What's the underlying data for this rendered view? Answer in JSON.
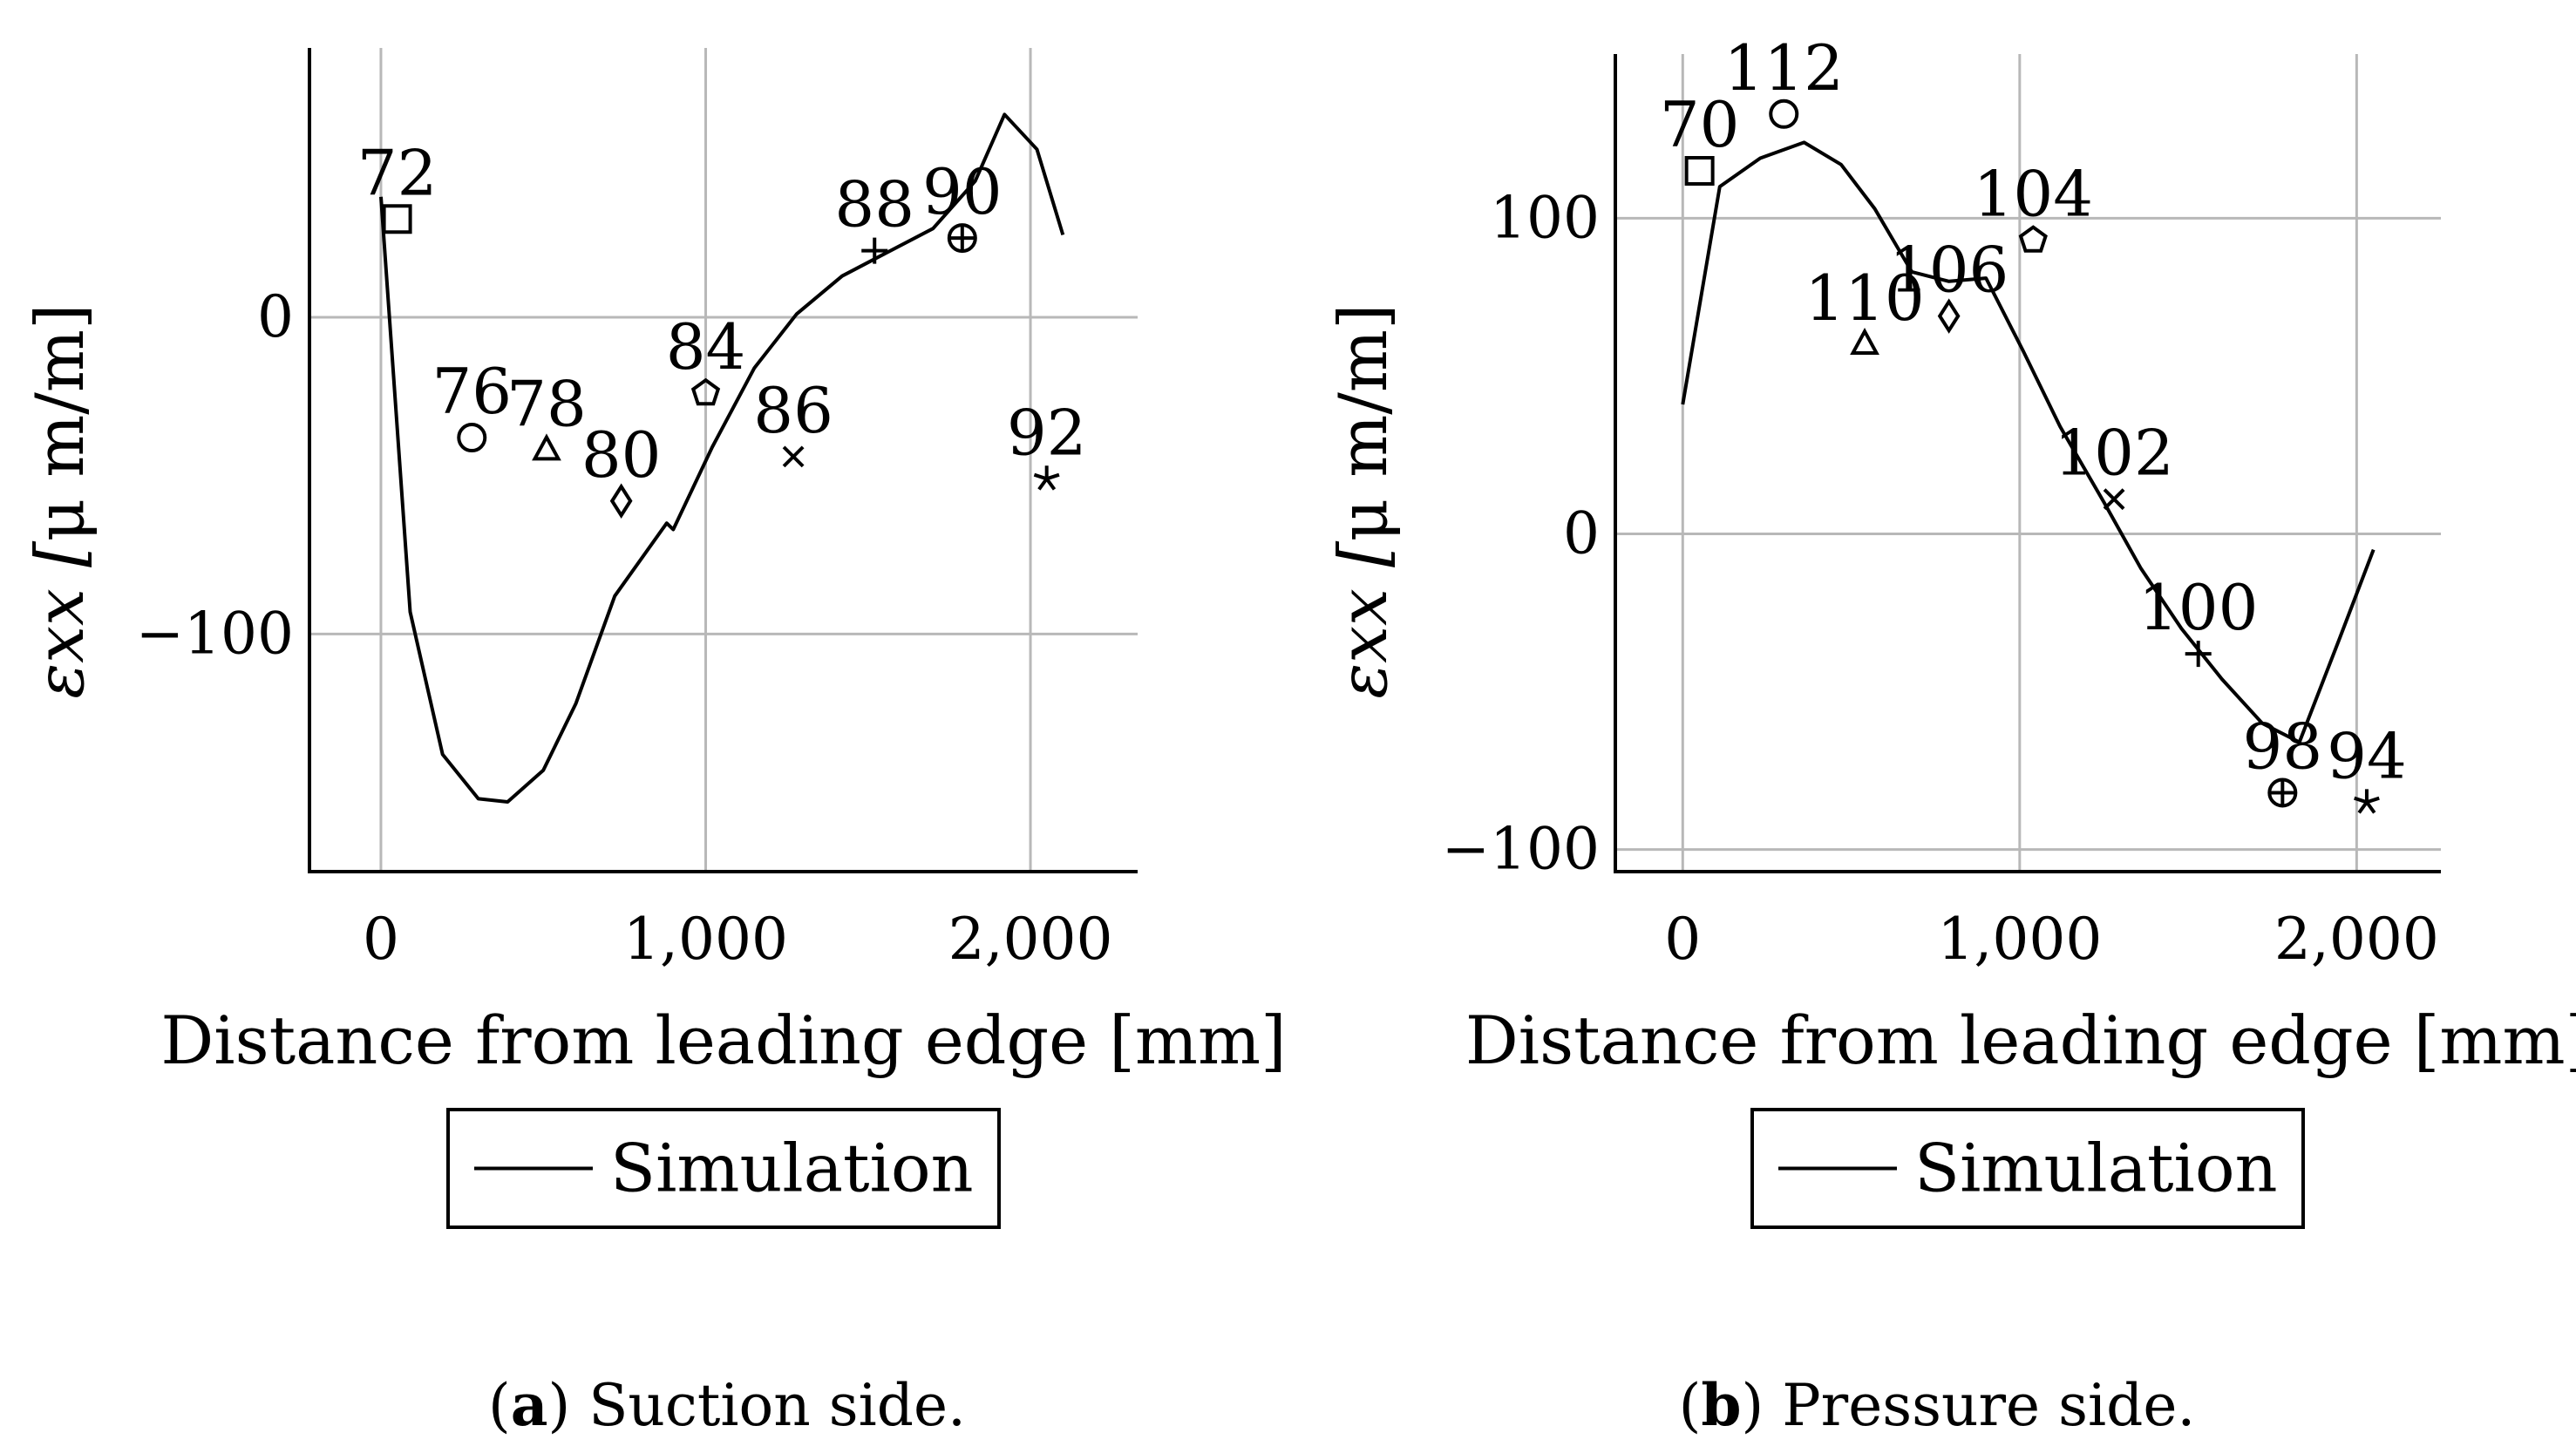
{
  "chart_data": [
    {
      "type": "line",
      "caption_letter": "a",
      "caption_text": ") Suction side.",
      "xlabel": "Distance from leading edge [mm]",
      "ylabel_prefix": "εxx [",
      "ylabel_unit": "μ m/m]",
      "xlim": [
        -220,
        2330
      ],
      "ylim": [
        -175,
        85
      ],
      "xticks": [
        {
          "value": 0,
          "label": "0"
        },
        {
          "value": 1000,
          "label": "1,000"
        },
        {
          "value": 2000,
          "label": "2,000"
        }
      ],
      "yticks": [
        {
          "value": 0,
          "label": "0"
        },
        {
          "value": -100,
          "label": "−100"
        }
      ],
      "grid": true,
      "legend": {
        "entries": [
          "Simulation"
        ],
        "placement": "below"
      },
      "simulation": {
        "name": "Simulation",
        "x": [
          0,
          90,
          190,
          300,
          390,
          500,
          600,
          720,
          880,
          900,
          1020,
          1150,
          1280,
          1420,
          1550,
          1700,
          1830,
          1920,
          2020,
          2100
        ],
        "y": [
          38,
          -93,
          -138,
          -152,
          -153,
          -143,
          -122,
          -88,
          -65,
          -67,
          -41,
          -16,
          1,
          13,
          20,
          28,
          43,
          64,
          53,
          26
        ]
      },
      "sensors": [
        {
          "label": "72",
          "x": 50,
          "y": 31,
          "marker": "square"
        },
        {
          "label": "76",
          "x": 280,
          "y": -38,
          "marker": "circle"
        },
        {
          "label": "78",
          "x": 510,
          "y": -42,
          "marker": "triangle"
        },
        {
          "label": "80",
          "x": 740,
          "y": -58,
          "marker": "diamond"
        },
        {
          "label": "84",
          "x": 1000,
          "y": -24,
          "marker": "pentagon"
        },
        {
          "label": "86",
          "x": 1270,
          "y": -44,
          "marker": "x"
        },
        {
          "label": "88",
          "x": 1520,
          "y": 21,
          "marker": "plus"
        },
        {
          "label": "90",
          "x": 1790,
          "y": 25,
          "marker": "oplus"
        },
        {
          "label": "92",
          "x": 2050,
          "y": -51,
          "marker": "star"
        }
      ]
    },
    {
      "type": "line",
      "caption_letter": "b",
      "caption_text": ") Pressure side.",
      "xlabel": "Distance from leading edge [mm]",
      "ylabel_prefix": "εxx [",
      "ylabel_unit": "μ m/m]",
      "xlim": [
        -200,
        2250
      ],
      "ylim": [
        -107,
        152
      ],
      "xticks": [
        {
          "value": 0,
          "label": "0"
        },
        {
          "value": 1000,
          "label": "1,000"
        },
        {
          "value": 2000,
          "label": "2,000"
        }
      ],
      "yticks": [
        {
          "value": 100,
          "label": "100"
        },
        {
          "value": 0,
          "label": "0"
        },
        {
          "value": -100,
          "label": "−100"
        }
      ],
      "grid": true,
      "legend": {
        "entries": [
          "Simulation"
        ],
        "placement": "below"
      },
      "simulation": {
        "name": "Simulation",
        "x": [
          0,
          110,
          230,
          360,
          470,
          570,
          680,
          790,
          900,
          1010,
          1120,
          1250,
          1360,
          1480,
          1600,
          1720,
          1830,
          1950,
          2050
        ],
        "y": [
          41,
          110,
          119,
          124,
          117,
          103,
          83,
          80,
          81,
          58,
          34,
          10,
          -11,
          -30,
          -46,
          -60,
          -66,
          -33,
          -5
        ]
      },
      "sensors": [
        {
          "label": "70",
          "x": 50,
          "y": 115,
          "marker": "square"
        },
        {
          "label": "112",
          "x": 300,
          "y": 133,
          "marker": "circle"
        },
        {
          "label": "110",
          "x": 540,
          "y": 60,
          "marker": "triangle"
        },
        {
          "label": "106",
          "x": 790,
          "y": 69,
          "marker": "diamond"
        },
        {
          "label": "104",
          "x": 1040,
          "y": 93,
          "marker": "pentagon"
        },
        {
          "label": "102",
          "x": 1280,
          "y": 11,
          "marker": "x"
        },
        {
          "label": "100",
          "x": 1530,
          "y": -38,
          "marker": "plus"
        },
        {
          "label": "98",
          "x": 1780,
          "y": -82,
          "marker": "oplus"
        },
        {
          "label": "94",
          "x": 2030,
          "y": -85,
          "marker": "star"
        }
      ]
    }
  ]
}
